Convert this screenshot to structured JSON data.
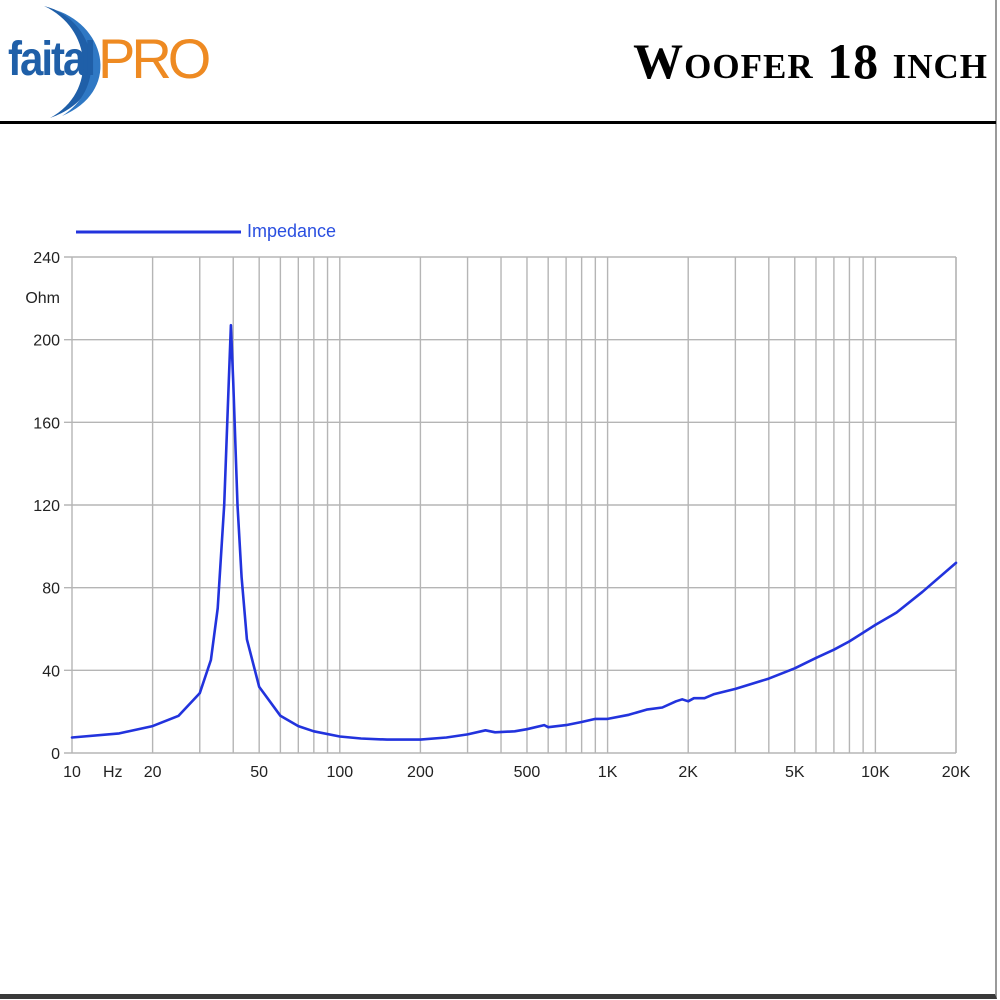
{
  "header": {
    "logo": {
      "primary": "faital",
      "secondary": "PRO",
      "primary_color": "#1f5fa8",
      "secondary_color": "#ee8a22"
    },
    "title": "Woofer 18 inch"
  },
  "colors": {
    "curve": "#2233dd",
    "grid": "#b5b5b5",
    "axis_text": "#222222"
  },
  "chart_data": {
    "type": "line",
    "title": "",
    "xlabel": "Hz",
    "ylabel": "Ohm",
    "xscale": "log",
    "xlim": [
      10,
      20000
    ],
    "ylim": [
      0,
      240
    ],
    "grid": true,
    "legend": {
      "position": "top-left",
      "entries": [
        "Impedance"
      ]
    },
    "x_tick_labels": [
      {
        "value": 10,
        "label": "10"
      },
      {
        "value": 14.2,
        "label": "Hz"
      },
      {
        "value": 20,
        "label": "20"
      },
      {
        "value": 50,
        "label": "50"
      },
      {
        "value": 100,
        "label": "100"
      },
      {
        "value": 200,
        "label": "200"
      },
      {
        "value": 500,
        "label": "500"
      },
      {
        "value": 1000,
        "label": "1K"
      },
      {
        "value": 2000,
        "label": "2K"
      },
      {
        "value": 5000,
        "label": "5K"
      },
      {
        "value": 10000,
        "label": "10K"
      },
      {
        "value": 20000,
        "label": "20K"
      }
    ],
    "y_tick_labels": [
      {
        "value": 0,
        "label": "0"
      },
      {
        "value": 40,
        "label": "40"
      },
      {
        "value": 80,
        "label": "80"
      },
      {
        "value": 120,
        "label": "120"
      },
      {
        "value": 160,
        "label": "160"
      },
      {
        "value": 200,
        "label": "200"
      },
      {
        "value": 240,
        "label": "240"
      }
    ],
    "y_unit_label": "Ohm",
    "series": [
      {
        "name": "Impedance",
        "color": "#2233dd",
        "x": [
          10,
          15,
          20,
          25,
          30,
          33,
          35,
          37,
          38.5,
          39.2,
          40,
          41.5,
          43,
          45,
          50,
          60,
          70,
          80,
          100,
          120,
          150,
          200,
          250,
          300,
          350,
          380,
          450,
          500,
          580,
          600,
          700,
          800,
          900,
          1000,
          1200,
          1400,
          1600,
          1800,
          1900,
          2000,
          2100,
          2300,
          2500,
          3000,
          4000,
          5000,
          6000,
          7000,
          8000,
          10000,
          12000,
          15000,
          20000
        ],
        "values": [
          7.5,
          9.5,
          13,
          18,
          29,
          45,
          70,
          120,
          180,
          207,
          180,
          120,
          85,
          55,
          32,
          18,
          13,
          10.5,
          8,
          7,
          6.5,
          6.5,
          7.5,
          9,
          11,
          10,
          10.5,
          11.5,
          13.5,
          12.5,
          13.5,
          15,
          16.5,
          16.5,
          18.5,
          21,
          22,
          25,
          26,
          25,
          26.5,
          26.5,
          28.5,
          31,
          36,
          41,
          46,
          50,
          54,
          62,
          68,
          78,
          92
        ]
      }
    ]
  }
}
